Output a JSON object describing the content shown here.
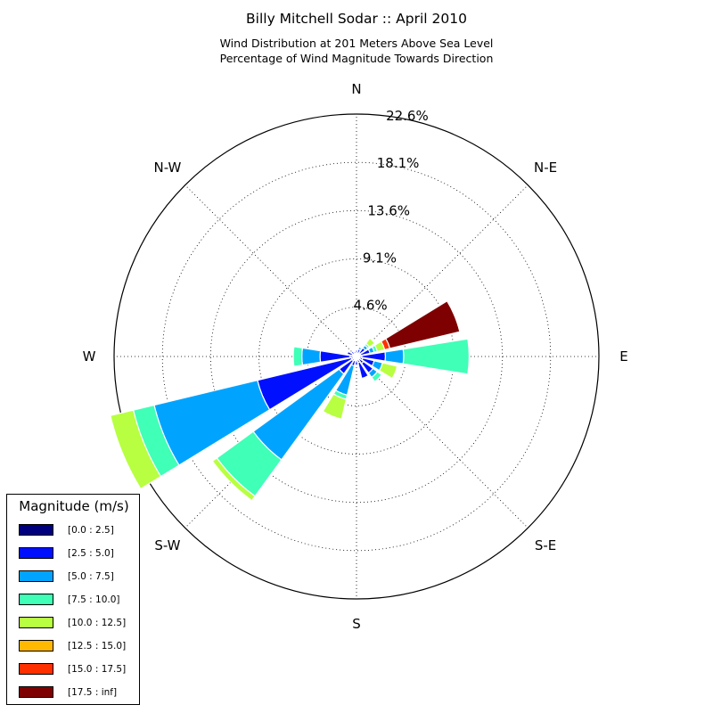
{
  "header": {
    "title": "Billy Mitchell Sodar :: April 2010",
    "subtitle_line1": "Wind Distribution at 201 Meters Above Sea Level",
    "subtitle_line2": "Percentage of Wind Magnitude Towards Direction"
  },
  "legend": {
    "title": "Magnitude (m/s)",
    "items": [
      {
        "label": "[0.0 : 2.5]",
        "color": "#00007f"
      },
      {
        "label": "[2.5 : 5.0]",
        "color": "#0010ff"
      },
      {
        "label": "[5.0 : 7.5]",
        "color": "#00a4ff"
      },
      {
        "label": "[7.5 : 10.0]",
        "color": "#40ffb7"
      },
      {
        "label": "[10.0 : 12.5]",
        "color": "#b7ff40"
      },
      {
        "label": "[12.5 : 15.0]",
        "color": "#ffb900"
      },
      {
        "label": "[15.0 : 17.5]",
        "color": "#ff3000"
      },
      {
        "label": "[17.5 : inf]",
        "color": "#7f0000"
      }
    ]
  },
  "chart_data": {
    "type": "windrose",
    "title": "Billy Mitchell Sodar :: April 2010",
    "subtitle": "Wind Distribution at 201 Meters Above Sea Level / Percentage of Wind Magnitude Towards Direction",
    "unit": "%",
    "rmax": 22.6,
    "radial_ticks": [
      4.6,
      9.1,
      13.6,
      18.1,
      22.6
    ],
    "radial_tick_labels": [
      "4.6%",
      "9.1%",
      "13.6%",
      "18.1%",
      "22.6%"
    ],
    "direction_labels": [
      "N",
      "N-E",
      "E",
      "S-E",
      "S",
      "S-W",
      "W",
      "N-W"
    ],
    "grid": true,
    "legend_position": "bottom-left",
    "sector_directions_deg": [
      0,
      22.5,
      45,
      67.5,
      90,
      112.5,
      135,
      157.5,
      180,
      202.5,
      225,
      247.5,
      270,
      292.5,
      315,
      337.5
    ],
    "series": [
      {
        "name": "[0.0 : 2.5]",
        "values": [
          0.3,
          0.3,
          0.4,
          0.4,
          0.5,
          0.6,
          0.8,
          0.6,
          0.4,
          0.4,
          0.5,
          0.5,
          0.6,
          0.4,
          0.3,
          0.3
        ]
      },
      {
        "name": "[2.5 : 5.0]",
        "values": [
          0.3,
          0.4,
          0.6,
          0.9,
          2.2,
          1.1,
          1.1,
          1.5,
          0.4,
          0.5,
          1.5,
          9.0,
          2.8,
          0.5,
          0.3,
          0.2
        ]
      },
      {
        "name": "[5.0 : 7.5]",
        "values": [
          0.1,
          0.2,
          0.3,
          0.4,
          1.7,
          0.8,
          0.5,
          0.0,
          0.0,
          2.8,
          9.9,
          9.9,
          1.7,
          0.0,
          0.0,
          0.0
        ]
      },
      {
        "name": "[7.5 : 10.0]",
        "values": [
          0.0,
          0.0,
          0.2,
          0.3,
          6.1,
          0.0,
          0.5,
          0.0,
          0.0,
          0.4,
          4.2,
          2.0,
          0.8,
          0.0,
          0.0,
          0.0
        ]
      },
      {
        "name": "[10.0 : 12.5]",
        "values": [
          0.0,
          0.0,
          0.6,
          0.7,
          0.0,
          1.4,
          0.0,
          0.0,
          0.0,
          1.9,
          0.5,
          2.2,
          0.0,
          0.0,
          0.0,
          0.0
        ]
      },
      {
        "name": "[12.5 : 15.0]",
        "values": [
          0.0,
          0.0,
          0.0,
          0.0,
          0.0,
          0.0,
          0.0,
          0.0,
          0.0,
          0.0,
          0.0,
          0.0,
          0.0,
          0.0,
          0.0,
          0.0
        ]
      },
      {
        "name": "[15.0 : 17.5]",
        "values": [
          0.0,
          0.0,
          0.0,
          0.5,
          0.0,
          0.0,
          0.0,
          0.0,
          0.0,
          0.0,
          0.0,
          0.0,
          0.0,
          0.0,
          0.0,
          0.0
        ]
      },
      {
        "name": "[17.5 : inf]",
        "values": [
          0.0,
          0.0,
          0.0,
          6.7,
          0.0,
          0.0,
          0.0,
          0.0,
          0.0,
          0.0,
          0.0,
          0.0,
          0.0,
          0.0,
          0.0,
          0.0
        ]
      }
    ]
  }
}
